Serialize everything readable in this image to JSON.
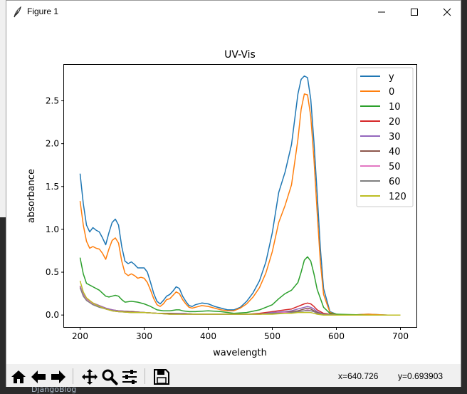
{
  "window": {
    "title": "Figure 1"
  },
  "toolbar": {
    "buttons": [
      "home-icon",
      "back-arrow-icon",
      "forward-arrow-icon",
      "pan-icon",
      "zoom-icon",
      "configure-subplots-icon",
      "save-icon"
    ],
    "x_readout": "x=640.726",
    "y_readout": "y=0.693903"
  },
  "background": {
    "bottom_text": "DjangoBlog"
  },
  "chart_data": {
    "type": "line",
    "title": "UV-Vis",
    "xlabel": "wavelength",
    "ylabel": "absorbance",
    "xlim": [
      175,
      725
    ],
    "ylim": [
      -0.14,
      2.92
    ],
    "xticks": [
      200,
      300,
      400,
      500,
      600,
      700
    ],
    "yticks": [
      0.0,
      0.5,
      1.0,
      1.5,
      2.0,
      2.5
    ],
    "grid": false,
    "legend_position": "top-right",
    "series": [
      {
        "name": "y",
        "color": "#1f77b4",
        "x": [
          200,
          205,
          210,
          215,
          220,
          225,
          230,
          235,
          240,
          245,
          250,
          255,
          260,
          265,
          270,
          275,
          280,
          285,
          290,
          295,
          300,
          305,
          310,
          315,
          320,
          325,
          330,
          335,
          340,
          345,
          350,
          355,
          360,
          365,
          370,
          375,
          380,
          390,
          400,
          410,
          420,
          430,
          440,
          450,
          460,
          470,
          480,
          490,
          500,
          510,
          520,
          530,
          540,
          545,
          550,
          555,
          560,
          565,
          570,
          575,
          580,
          590,
          600,
          620,
          650,
          680,
          700
        ],
        "values": [
          1.65,
          1.3,
          1.05,
          0.97,
          1.02,
          0.99,
          0.97,
          0.9,
          0.82,
          0.96,
          1.08,
          1.12,
          1.05,
          0.8,
          0.63,
          0.6,
          0.62,
          0.59,
          0.55,
          0.55,
          0.55,
          0.5,
          0.38,
          0.25,
          0.16,
          0.13,
          0.17,
          0.22,
          0.24,
          0.28,
          0.33,
          0.31,
          0.22,
          0.16,
          0.11,
          0.1,
          0.12,
          0.14,
          0.13,
          0.1,
          0.08,
          0.06,
          0.06,
          0.09,
          0.16,
          0.26,
          0.4,
          0.62,
          0.96,
          1.43,
          1.67,
          1.99,
          2.58,
          2.75,
          2.79,
          2.77,
          2.52,
          2.02,
          1.42,
          0.78,
          0.31,
          0.04,
          0.01,
          0.0,
          0.01,
          0.0,
          0.0
        ]
      },
      {
        "name": "0",
        "color": "#ff7f0e",
        "x": [
          200,
          205,
          210,
          215,
          220,
          225,
          230,
          235,
          240,
          245,
          250,
          255,
          260,
          265,
          270,
          275,
          280,
          285,
          290,
          295,
          300,
          305,
          310,
          315,
          320,
          325,
          330,
          335,
          340,
          345,
          350,
          355,
          360,
          365,
          370,
          375,
          380,
          390,
          400,
          410,
          420,
          430,
          440,
          450,
          460,
          470,
          480,
          490,
          500,
          510,
          520,
          530,
          540,
          545,
          550,
          555,
          560,
          565,
          570,
          575,
          580,
          590,
          600,
          620,
          650,
          680,
          700
        ],
        "values": [
          1.33,
          1.05,
          0.86,
          0.78,
          0.8,
          0.78,
          0.77,
          0.72,
          0.65,
          0.77,
          0.87,
          0.9,
          0.84,
          0.63,
          0.49,
          0.46,
          0.48,
          0.46,
          0.43,
          0.44,
          0.43,
          0.38,
          0.29,
          0.19,
          0.12,
          0.1,
          0.13,
          0.18,
          0.19,
          0.23,
          0.27,
          0.25,
          0.18,
          0.13,
          0.09,
          0.08,
          0.09,
          0.11,
          0.1,
          0.08,
          0.06,
          0.05,
          0.05,
          0.08,
          0.13,
          0.21,
          0.32,
          0.49,
          0.74,
          1.08,
          1.28,
          1.52,
          2.05,
          2.4,
          2.58,
          2.57,
          2.32,
          1.82,
          1.2,
          0.62,
          0.24,
          0.03,
          0.01,
          0.0,
          0.01,
          0.0,
          0.0
        ]
      },
      {
        "name": "10",
        "color": "#2ca02c",
        "x": [
          200,
          205,
          210,
          220,
          230,
          240,
          245,
          250,
          255,
          260,
          265,
          270,
          280,
          290,
          300,
          310,
          320,
          330,
          340,
          350,
          355,
          360,
          370,
          380,
          400,
          420,
          440,
          460,
          480,
          500,
          510,
          520,
          530,
          540,
          545,
          550,
          555,
          560,
          565,
          570,
          580,
          590,
          600,
          650,
          700
        ],
        "values": [
          0.67,
          0.48,
          0.37,
          0.33,
          0.29,
          0.22,
          0.21,
          0.22,
          0.23,
          0.22,
          0.18,
          0.15,
          0.16,
          0.15,
          0.13,
          0.1,
          0.06,
          0.05,
          0.05,
          0.06,
          0.06,
          0.05,
          0.04,
          0.04,
          0.05,
          0.04,
          0.02,
          0.03,
          0.06,
          0.12,
          0.19,
          0.25,
          0.29,
          0.38,
          0.5,
          0.64,
          0.68,
          0.63,
          0.48,
          0.3,
          0.09,
          0.02,
          0.01,
          0.0,
          0.0
        ]
      },
      {
        "name": "20",
        "color": "#d62728",
        "x": [
          200,
          205,
          210,
          220,
          230,
          240,
          250,
          260,
          280,
          300,
          320,
          340,
          360,
          380,
          400,
          420,
          440,
          460,
          480,
          500,
          520,
          530,
          540,
          550,
          555,
          560,
          565,
          570,
          580,
          600,
          700
        ],
        "values": [
          0.33,
          0.24,
          0.19,
          0.14,
          0.11,
          0.08,
          0.06,
          0.05,
          0.04,
          0.03,
          0.02,
          0.02,
          0.02,
          0.01,
          0.01,
          0.01,
          0.01,
          0.01,
          0.02,
          0.04,
          0.06,
          0.07,
          0.1,
          0.13,
          0.14,
          0.13,
          0.1,
          0.06,
          0.02,
          0.0,
          0.0
        ]
      },
      {
        "name": "30",
        "color": "#9467bd",
        "x": [
          200,
          205,
          210,
          220,
          230,
          240,
          250,
          260,
          280,
          300,
          320,
          340,
          360,
          380,
          400,
          420,
          440,
          460,
          480,
          500,
          520,
          530,
          540,
          550,
          555,
          560,
          565,
          570,
          580,
          600,
          700
        ],
        "values": [
          0.34,
          0.24,
          0.19,
          0.14,
          0.11,
          0.08,
          0.06,
          0.05,
          0.04,
          0.03,
          0.02,
          0.02,
          0.02,
          0.01,
          0.01,
          0.01,
          0.01,
          0.01,
          0.01,
          0.03,
          0.04,
          0.05,
          0.07,
          0.09,
          0.1,
          0.09,
          0.07,
          0.04,
          0.01,
          0.0,
          0.0
        ]
      },
      {
        "name": "40",
        "color": "#8c564b",
        "x": [
          200,
          205,
          210,
          220,
          230,
          240,
          250,
          260,
          280,
          300,
          320,
          340,
          360,
          380,
          400,
          420,
          440,
          460,
          480,
          500,
          520,
          530,
          540,
          550,
          555,
          560,
          565,
          570,
          580,
          600,
          700
        ],
        "values": [
          0.33,
          0.23,
          0.18,
          0.13,
          0.1,
          0.07,
          0.05,
          0.04,
          0.04,
          0.03,
          0.02,
          0.02,
          0.01,
          0.01,
          0.01,
          0.01,
          0.01,
          0.01,
          0.01,
          0.02,
          0.03,
          0.04,
          0.05,
          0.07,
          0.08,
          0.07,
          0.05,
          0.03,
          0.01,
          0.0,
          0.0
        ]
      },
      {
        "name": "50",
        "color": "#e377c2",
        "x": [
          200,
          205,
          210,
          220,
          230,
          240,
          250,
          260,
          280,
          300,
          320,
          340,
          360,
          380,
          400,
          420,
          440,
          460,
          480,
          500,
          520,
          530,
          540,
          550,
          555,
          560,
          565,
          570,
          580,
          600,
          700
        ],
        "values": [
          0.33,
          0.23,
          0.18,
          0.13,
          0.1,
          0.07,
          0.05,
          0.04,
          0.03,
          0.03,
          0.02,
          0.01,
          0.01,
          0.01,
          0.01,
          0.01,
          0.01,
          0.01,
          0.01,
          0.02,
          0.03,
          0.03,
          0.04,
          0.05,
          0.06,
          0.05,
          0.04,
          0.02,
          0.01,
          0.0,
          0.0
        ]
      },
      {
        "name": "60",
        "color": "#7f7f7f",
        "x": [
          200,
          205,
          210,
          220,
          230,
          240,
          250,
          260,
          280,
          300,
          320,
          340,
          360,
          380,
          400,
          420,
          440,
          460,
          480,
          500,
          520,
          530,
          540,
          550,
          555,
          560,
          565,
          570,
          580,
          600,
          700
        ],
        "values": [
          0.32,
          0.22,
          0.17,
          0.12,
          0.09,
          0.07,
          0.05,
          0.04,
          0.03,
          0.03,
          0.02,
          0.01,
          0.01,
          0.01,
          0.01,
          0.01,
          0.01,
          0.01,
          0.01,
          0.02,
          0.02,
          0.03,
          0.04,
          0.05,
          0.05,
          0.05,
          0.04,
          0.02,
          0.01,
          0.0,
          0.0
        ]
      },
      {
        "name": "120",
        "color": "#bcbd22",
        "x": [
          200,
          205,
          210,
          220,
          230,
          240,
          250,
          260,
          280,
          300,
          320,
          340,
          360,
          380,
          400,
          420,
          440,
          460,
          480,
          500,
          520,
          530,
          540,
          550,
          555,
          560,
          565,
          570,
          580,
          600,
          700
        ],
        "values": [
          0.4,
          0.27,
          0.2,
          0.14,
          0.1,
          0.07,
          0.05,
          0.04,
          0.03,
          0.03,
          0.02,
          0.01,
          0.01,
          0.01,
          0.01,
          0.01,
          0.01,
          0.01,
          0.01,
          0.01,
          0.02,
          0.02,
          0.03,
          0.03,
          0.03,
          0.03,
          0.02,
          0.01,
          0.0,
          0.0,
          0.0
        ]
      }
    ]
  }
}
